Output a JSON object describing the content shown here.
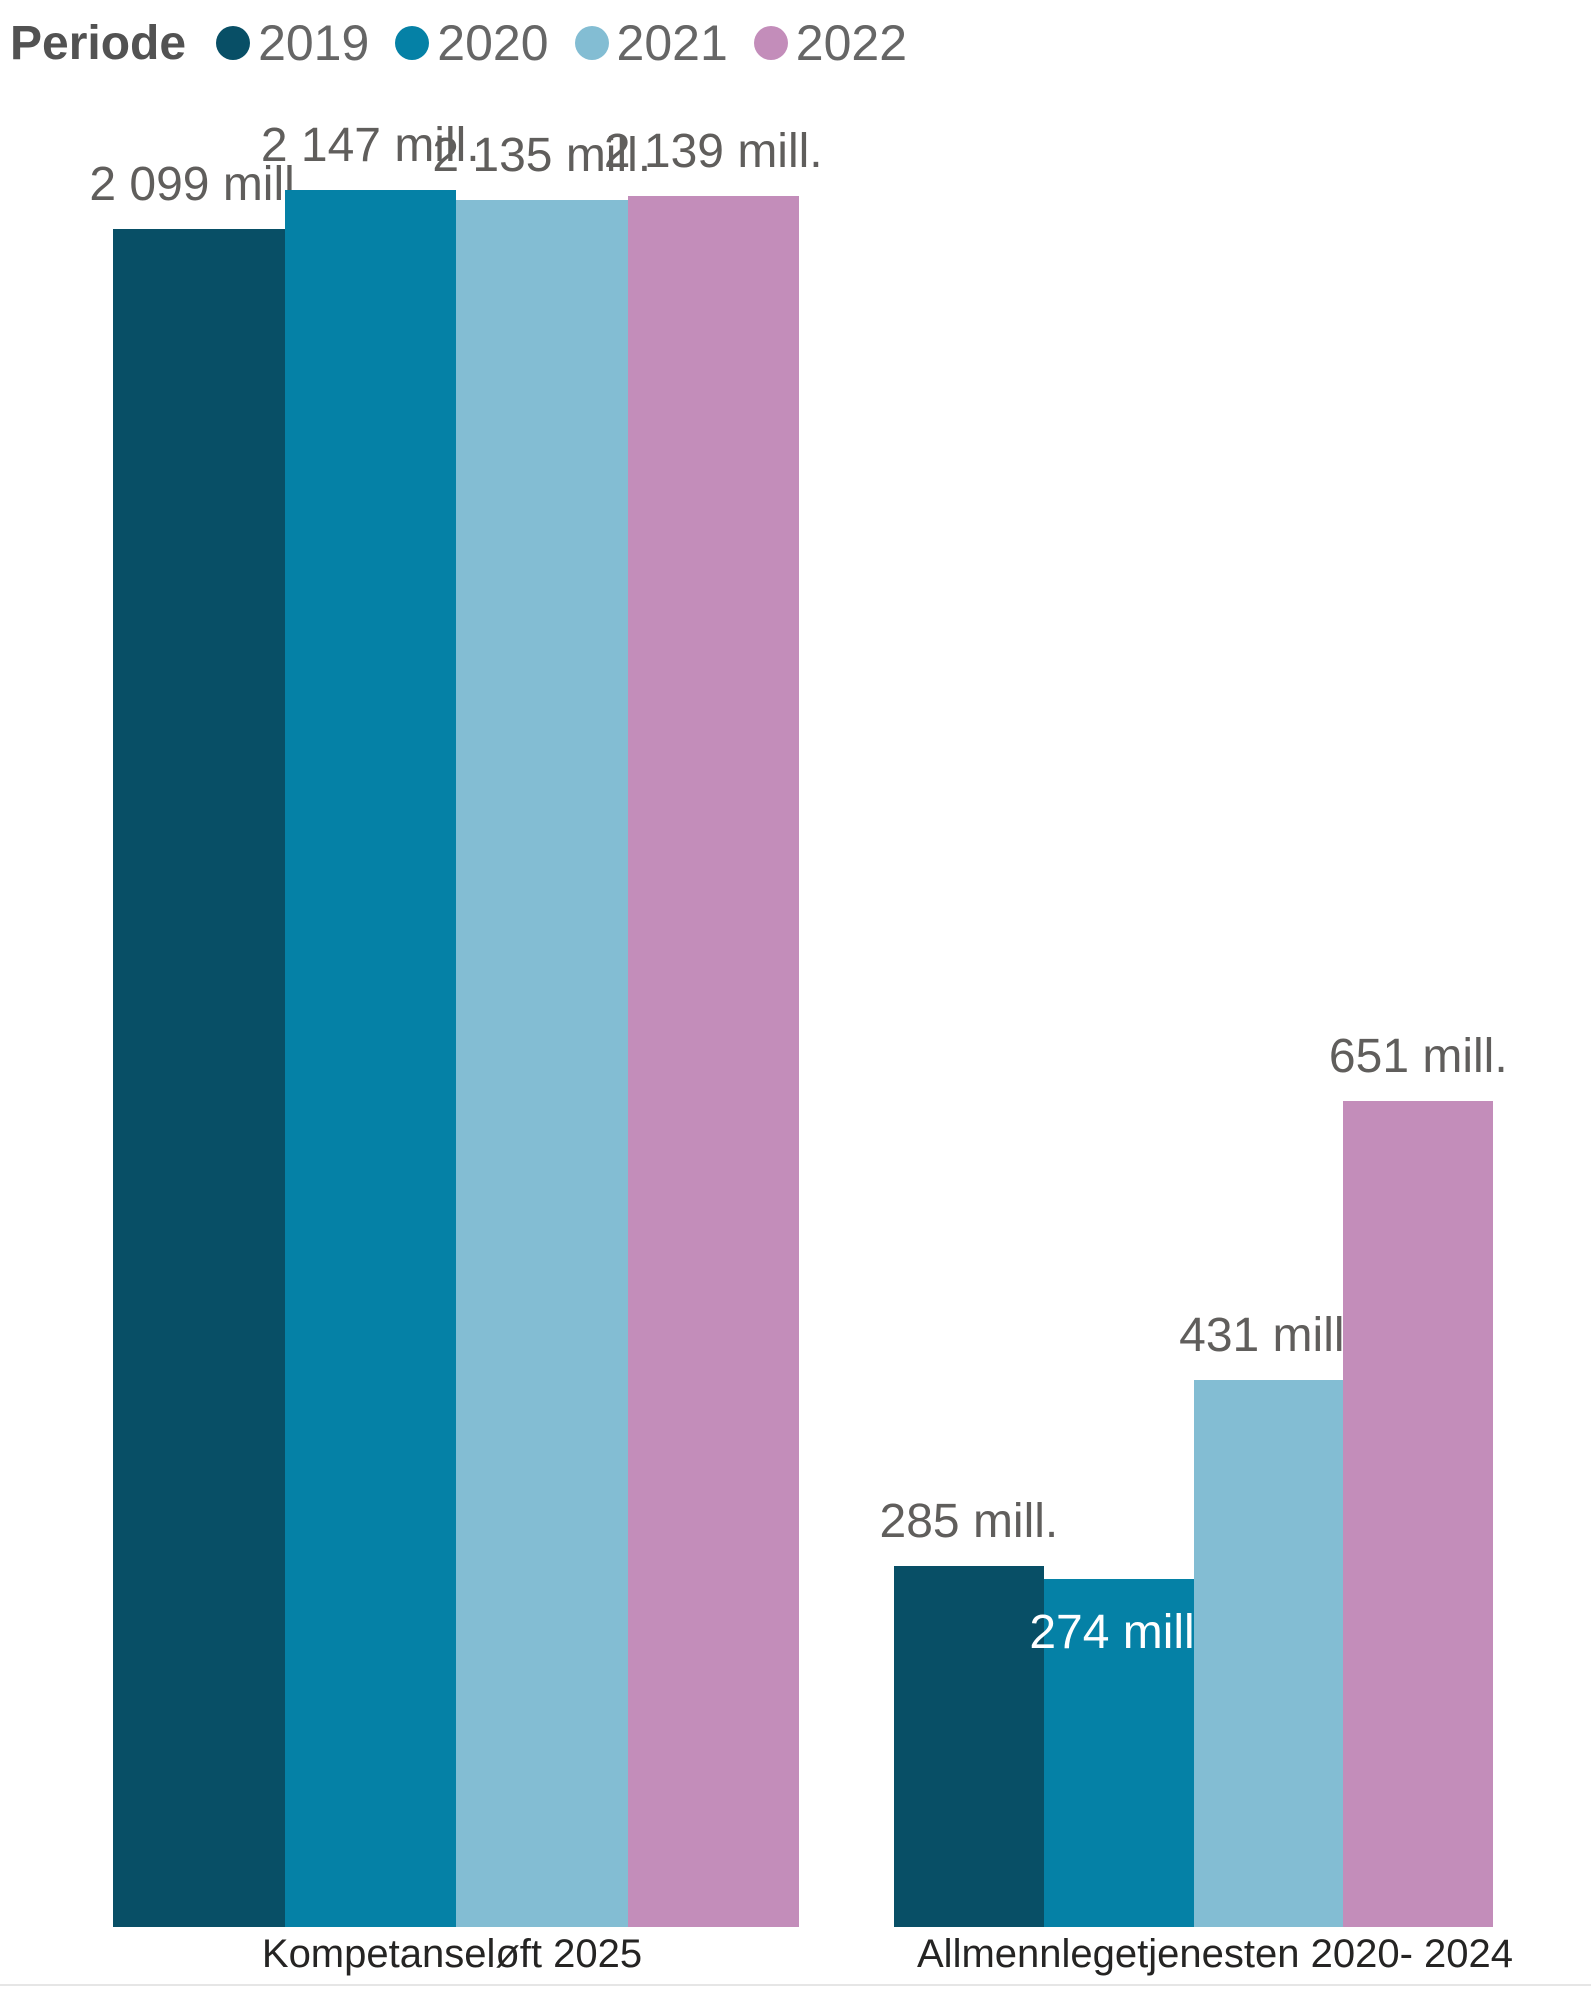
{
  "chart_data": {
    "type": "bar",
    "legend_title": "Periode",
    "legend_position": "top",
    "grid": false,
    "y_axis_visible": false,
    "unit": "mill.",
    "categories": [
      "Kompetanseløft 2025",
      "Allmennlegetjenesten 2020- 2024"
    ],
    "series": [
      {
        "name": "2019",
        "color": "#084F66",
        "points": [
          {
            "value": 2099,
            "label": "2 099 mill.",
            "label_placement": "outside",
            "label_color": "#605E5C"
          },
          {
            "value": 285,
            "label": "285 mill.",
            "label_placement": "outside",
            "label_color": "#605E5C"
          }
        ]
      },
      {
        "name": "2020",
        "color": "#0581A6",
        "points": [
          {
            "value": 2147,
            "label": "2 147 mill.",
            "label_placement": "outside",
            "label_color": "#605E5C"
          },
          {
            "value": 274,
            "label": "274 mill.",
            "label_placement": "inside",
            "label_color": "#FFFFFF"
          }
        ]
      },
      {
        "name": "2021",
        "color": "#83BDD3",
        "points": [
          {
            "value": 2135,
            "label": "2 135 mill.",
            "label_placement": "outside",
            "label_color": "#605E5C"
          },
          {
            "value": 431,
            "label": "431 mill.",
            "label_placement": "outside",
            "label_color": "#605E5C"
          }
        ]
      },
      {
        "name": "2022",
        "color": "#C38DBA",
        "points": [
          {
            "value": 2139,
            "label": "2 139 mill.",
            "label_placement": "outside",
            "label_color": "#605E5C"
          },
          {
            "value": 651,
            "label": "651 mill.",
            "label_placement": "outside",
            "label_color": "#605E5C"
          }
        ]
      }
    ]
  },
  "colors": {
    "background": "#FFFFFF",
    "data_label": "#605E5C",
    "category_label": "#252423",
    "legend_title": "#525252",
    "legend_label": "#666666",
    "divider": "#E6E6E6"
  }
}
